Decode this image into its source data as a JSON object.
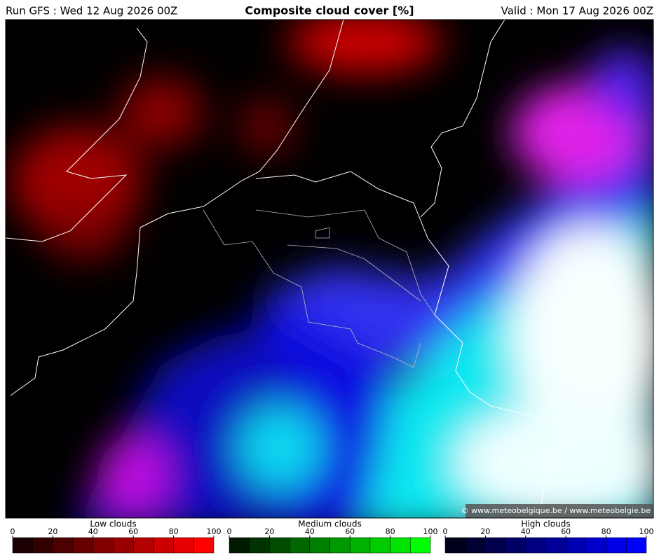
{
  "header": {
    "run": "Run GFS : Wed 12 Aug 2026 00Z",
    "title": "Composite cloud cover [%]",
    "valid": "Valid : Mon 17 Aug 2026 00Z"
  },
  "map": {
    "credit": "© www.meteobelgique.be / www.meteobelgie.be"
  },
  "legends": [
    {
      "title": "Low clouds",
      "ticks": [
        0,
        20,
        40,
        60,
        80,
        100
      ],
      "colors": [
        "#1a0000",
        "#330000",
        "#4d0000",
        "#660000",
        "#800000",
        "#990000",
        "#b30000",
        "#cc0000",
        "#e60000",
        "#ff0000"
      ]
    },
    {
      "title": "Medium clouds",
      "ticks": [
        0,
        20,
        40,
        60,
        80,
        100
      ],
      "colors": [
        "#001a00",
        "#003300",
        "#004d00",
        "#006600",
        "#008000",
        "#009900",
        "#00b300",
        "#00cc00",
        "#00e600",
        "#00ff00"
      ]
    },
    {
      "title": "High clouds",
      "ticks": [
        0,
        20,
        40,
        60,
        80,
        100
      ],
      "colors": [
        "#00001a",
        "#000033",
        "#00004d",
        "#000066",
        "#000080",
        "#000099",
        "#0000b3",
        "#0000cc",
        "#0000e6",
        "#0000ff"
      ]
    }
  ]
}
